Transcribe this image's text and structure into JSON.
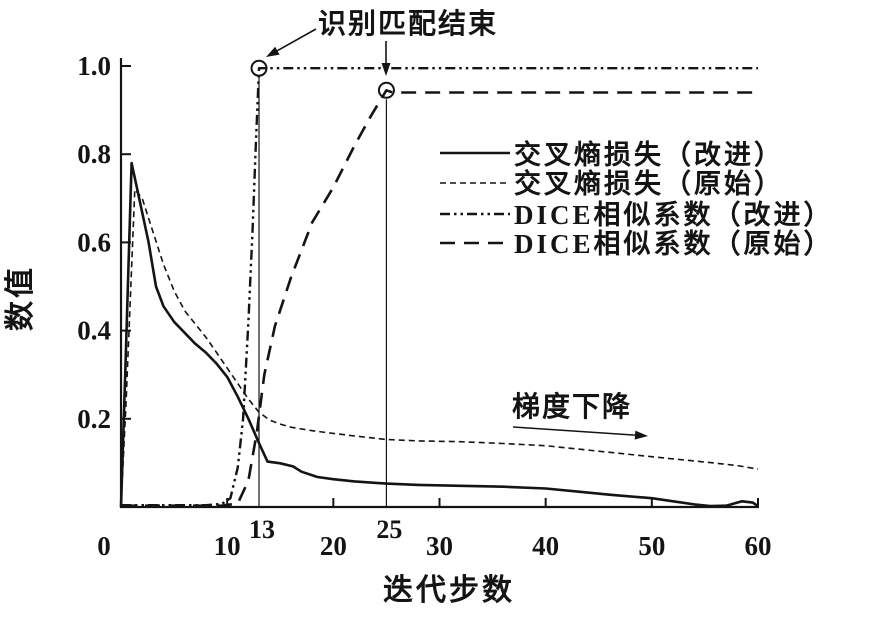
{
  "figure": {
    "background": "#ffffff",
    "line_color": "#141414"
  },
  "chart_data": {
    "type": "line",
    "title": "",
    "xlabel": "迭代步数",
    "ylabel": "数值",
    "xlim": [
      0,
      60
    ],
    "ylim": [
      0,
      1.02
    ],
    "grid": false,
    "legend_position": "upper-right-inside",
    "x_ticks": [
      0,
      10,
      20,
      30,
      40,
      50,
      60
    ],
    "x_event_ticks": [
      13,
      25
    ],
    "y_ticks": [
      0.2,
      0.4,
      0.6,
      0.8,
      1.0
    ],
    "series": [
      {
        "name": "交叉熵损失（改进）",
        "style": "solid",
        "points": [
          [
            0,
            0
          ],
          [
            0.4,
            0.3
          ],
          [
            1,
            0.78
          ],
          [
            1.8,
            0.69
          ],
          [
            2.6,
            0.6
          ],
          [
            3.3,
            0.5
          ],
          [
            4,
            0.455
          ],
          [
            5,
            0.42
          ],
          [
            6,
            0.395
          ],
          [
            7,
            0.37
          ],
          [
            8,
            0.35
          ],
          [
            9,
            0.325
          ],
          [
            10,
            0.295
          ],
          [
            11,
            0.25
          ],
          [
            12,
            0.2
          ],
          [
            13,
            0.145
          ],
          [
            13.8,
            0.103
          ],
          [
            15,
            0.099
          ],
          [
            16.2,
            0.092
          ],
          [
            17,
            0.08
          ],
          [
            18.5,
            0.068
          ],
          [
            20,
            0.063
          ],
          [
            22,
            0.058
          ],
          [
            25,
            0.053
          ],
          [
            28,
            0.05
          ],
          [
            32,
            0.048
          ],
          [
            36,
            0.046
          ],
          [
            40,
            0.042
          ],
          [
            43,
            0.035
          ],
          [
            46,
            0.028
          ],
          [
            50,
            0.02
          ],
          [
            52,
            0.013
          ],
          [
            54,
            0.006
          ],
          [
            55.5,
            0.002
          ],
          [
            57,
            0.003
          ],
          [
            58.5,
            0.013
          ],
          [
            59.5,
            0.01
          ],
          [
            60,
            0.002
          ]
        ]
      },
      {
        "name": "交叉熵损失（原始）",
        "style": "short-dash",
        "points": [
          [
            0,
            0
          ],
          [
            0.5,
            0.25
          ],
          [
            1.3,
            0.72
          ],
          [
            2,
            0.7
          ],
          [
            3,
            0.625
          ],
          [
            4,
            0.55
          ],
          [
            5,
            0.49
          ],
          [
            6,
            0.445
          ],
          [
            7,
            0.415
          ],
          [
            8,
            0.385
          ],
          [
            9,
            0.35
          ],
          [
            10,
            0.315
          ],
          [
            11,
            0.28
          ],
          [
            12,
            0.245
          ],
          [
            13,
            0.215
          ],
          [
            14,
            0.197
          ],
          [
            15,
            0.188
          ],
          [
            16,
            0.181
          ],
          [
            18,
            0.173
          ],
          [
            20,
            0.167
          ],
          [
            22,
            0.161
          ],
          [
            25,
            0.153
          ],
          [
            28,
            0.15
          ],
          [
            32,
            0.148
          ],
          [
            36,
            0.144
          ],
          [
            40,
            0.139
          ],
          [
            44,
            0.129
          ],
          [
            48,
            0.119
          ],
          [
            52,
            0.109
          ],
          [
            55,
            0.102
          ],
          [
            58,
            0.094
          ],
          [
            60,
            0.086
          ]
        ]
      },
      {
        "name": "DICE相似系数（改进）",
        "style": "dash-dot",
        "points": [
          [
            0,
            0.004
          ],
          [
            8,
            0.004
          ],
          [
            9.5,
            0.007
          ],
          [
            10.3,
            0.02
          ],
          [
            11,
            0.09
          ],
          [
            11.5,
            0.2
          ],
          [
            12,
            0.42
          ],
          [
            12.4,
            0.63
          ],
          [
            12.7,
            0.82
          ],
          [
            13,
            0.995
          ],
          [
            14,
            0.995
          ],
          [
            60,
            0.995
          ]
        ]
      },
      {
        "name": "DICE相似系数（原始）",
        "style": "long-dash",
        "points": [
          [
            0,
            0.003
          ],
          [
            9.5,
            0.003
          ],
          [
            11,
            0.008
          ],
          [
            12,
            0.06
          ],
          [
            12.8,
            0.17
          ],
          [
            13.5,
            0.3
          ],
          [
            14.5,
            0.41
          ],
          [
            16,
            0.52
          ],
          [
            18,
            0.645
          ],
          [
            20,
            0.725
          ],
          [
            22,
            0.82
          ],
          [
            23.5,
            0.885
          ],
          [
            25,
            0.945
          ],
          [
            25.6,
            0.94
          ],
          [
            60,
            0.94
          ]
        ]
      }
    ],
    "markers": [
      {
        "x": 13,
        "y": 0.995,
        "shape": "open-circle",
        "series": "DICE相似系数（改进）"
      },
      {
        "x": 25,
        "y": 0.945,
        "shape": "open-circle",
        "series": "DICE相似系数（原始）"
      }
    ],
    "event_lines": [
      {
        "x": 13,
        "label": "13"
      },
      {
        "x": 25,
        "label": "25"
      }
    ],
    "annotations": [
      {
        "text": "识别匹配结束",
        "points_to": "markers at x=13 and x=25"
      },
      {
        "text": "梯度下降",
        "points_to": "rightward gradient-descent direction"
      }
    ]
  }
}
